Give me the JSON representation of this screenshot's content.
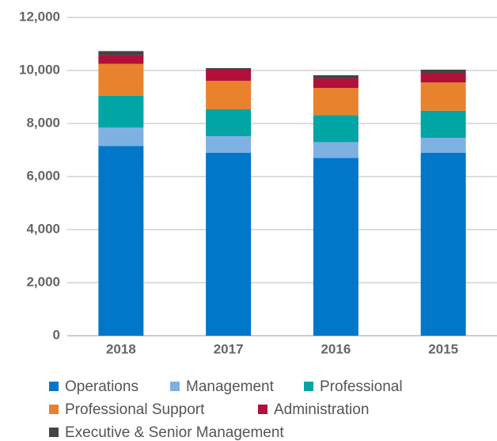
{
  "chart_data": {
    "type": "stacked_bar",
    "categories": [
      "2018",
      "2017",
      "2016",
      "2015"
    ],
    "series": [
      {
        "name": "Operations",
        "color": "#0077c8",
        "values": [
          7150,
          6900,
          6700,
          6900
        ]
      },
      {
        "name": "Management",
        "color": "#7eb0e2",
        "values": [
          700,
          620,
          600,
          560
        ]
      },
      {
        "name": "Professional",
        "color": "#00a5a4",
        "values": [
          1200,
          1020,
          1020,
          1020
        ]
      },
      {
        "name": "Professional Support",
        "color": "#e8822c",
        "values": [
          1200,
          1070,
          1020,
          1070
        ]
      },
      {
        "name": "Administration",
        "color": "#b20f3b",
        "values": [
          330,
          420,
          360,
          360
        ]
      },
      {
        "name": "Executive & Senior Management",
        "color": "#444444",
        "values": [
          150,
          60,
          120,
          120
        ]
      }
    ],
    "ylim": [
      0,
      12000
    ],
    "yticks": [
      0,
      {
        "value": 2000,
        "label": "2,000"
      },
      {
        "value": 4000,
        "label": "4,000"
      },
      {
        "value": 6000,
        "label": "6,000"
      },
      {
        "value": 8000,
        "label": "8,000"
      },
      {
        "value": 10000,
        "label": "10,000"
      },
      {
        "value": 12000,
        "label": "12,000"
      }
    ],
    "grid": true
  }
}
